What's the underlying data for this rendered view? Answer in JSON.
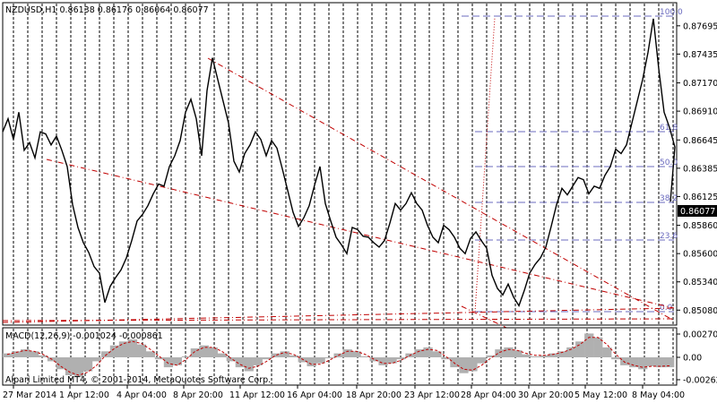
{
  "window": {
    "symbol_header": "NZDUSD,H1  0.86138 0.86176 0.86064 0.86077",
    "copyright": "Alpari Limited MT4, © 2001-2014, MetaQuotes Software Corp."
  },
  "colors": {
    "price_line": "#000000",
    "grid": "#000000",
    "trendline": "#c00000",
    "fibonacci": "#6b6bbf",
    "bid_label_bg": "#000000",
    "macd_histogram": "#b0b0b0",
    "macd_signal": "#c00000"
  },
  "price_axis": {
    "ticks": [
      "0.87695",
      "0.87435",
      "0.87170",
      "0.86910",
      "0.86645",
      "0.86385",
      "0.86125",
      "0.85860",
      "0.85600",
      "0.85340",
      "0.85080"
    ],
    "bid_label": "0.86077"
  },
  "time_axis": {
    "ticks": [
      "27 Mar 2014",
      "1 Apr 12:00",
      "4 Apr 04:00",
      "8 Apr 20:00",
      "11 Apr 12:00",
      "16 Apr 04:00",
      "18 Apr 20:00",
      "23 Apr 12:00",
      "28 Apr 04:00",
      "30 Apr 20:00",
      "5 May 12:00",
      "8 May 04:00"
    ]
  },
  "fibonacci_levels": [
    "100.0",
    "61.8",
    "50.0",
    "38.2",
    "23.6",
    "0.0"
  ],
  "macd": {
    "header": "MACD(12,26,9) -0.001024 -0.000861",
    "ticks": [
      "0.002705",
      "0.00",
      "-0.002624"
    ]
  },
  "chart_data": [
    {
      "type": "line",
      "title": "NZDUSD,H1",
      "series": [
        {
          "name": "NZDUSD",
          "x": [
            0,
            6,
            12,
            18,
            24,
            30,
            36,
            42,
            48,
            54,
            60,
            66,
            72,
            78,
            84,
            90,
            96,
            102,
            108,
            114,
            120,
            126,
            132,
            138,
            144,
            150,
            156,
            162,
            168,
            174,
            180,
            186,
            192,
            198,
            204,
            210,
            216,
            222,
            228,
            234,
            240,
            246,
            252,
            258,
            264,
            270,
            276,
            282,
            288,
            294,
            300,
            306,
            312,
            318,
            324,
            330,
            336,
            342,
            348,
            354,
            360,
            366,
            372,
            378,
            384,
            390,
            396,
            402,
            408,
            414,
            420,
            426,
            432,
            438,
            444,
            450,
            456,
            462,
            468,
            474,
            480,
            486,
            492,
            498,
            504,
            510,
            516,
            522,
            528,
            534,
            540,
            546,
            552,
            558,
            564,
            570,
            576,
            582,
            588,
            594,
            600,
            606,
            612,
            618,
            624,
            630,
            636,
            642,
            648,
            654,
            660,
            666,
            672,
            678,
            684,
            690,
            696,
            702,
            708,
            714,
            720,
            726,
            732,
            738,
            744,
            750
          ],
          "y": [
            0.8672,
            0.8684,
            0.8665,
            0.869,
            0.8655,
            0.8662,
            0.8648,
            0.8672,
            0.867,
            0.866,
            0.8668,
            0.8655,
            0.864,
            0.8605,
            0.8584,
            0.857,
            0.8561,
            0.8548,
            0.8542,
            0.8515,
            0.853,
            0.8538,
            0.8545,
            0.8556,
            0.8572,
            0.859,
            0.8596,
            0.8604,
            0.8615,
            0.8624,
            0.8622,
            0.864,
            0.865,
            0.8664,
            0.869,
            0.8702,
            0.8684,
            0.865,
            0.871,
            0.874,
            0.872,
            0.87,
            0.868,
            0.8645,
            0.8635,
            0.8652,
            0.866,
            0.8672,
            0.8665,
            0.865,
            0.8664,
            0.8657,
            0.8638,
            0.8618,
            0.8598,
            0.8585,
            0.8593,
            0.8604,
            0.8623,
            0.864,
            0.8606,
            0.859,
            0.8575,
            0.8568,
            0.856,
            0.8584,
            0.8582,
            0.8576,
            0.8575,
            0.857,
            0.8566,
            0.8572,
            0.8588,
            0.8606,
            0.86,
            0.8606,
            0.8616,
            0.8606,
            0.86,
            0.8586,
            0.8575,
            0.857,
            0.8586,
            0.8582,
            0.8575,
            0.8565,
            0.856,
            0.8574,
            0.858,
            0.8572,
            0.8565,
            0.854,
            0.8528,
            0.8522,
            0.8532,
            0.852,
            0.8512,
            0.8526,
            0.8542,
            0.855,
            0.8556,
            0.8566,
            0.8585,
            0.8605,
            0.862,
            0.8614,
            0.8622,
            0.863,
            0.8628,
            0.8615,
            0.8622,
            0.862,
            0.8632,
            0.864,
            0.8656,
            0.8652,
            0.866,
            0.868,
            0.87,
            0.872,
            0.8745,
            0.8776,
            0.873,
            0.869,
            0.8676,
            0.8658
          ],
          "last": 0.86077
        }
      ],
      "ylim": [
        0.85,
        0.8785
      ]
    },
    {
      "type": "bar",
      "title": "MACD(12,26,9)",
      "series": [
        {
          "name": "MACD histogram",
          "values": [
            0.0004,
            0.0006,
            0.0008,
            0.0006,
            0.0002,
            -0.0004,
            -0.0012,
            -0.0018,
            -0.002,
            -0.0014,
            -0.0004,
            0.0006,
            0.0012,
            0.0016,
            0.0018,
            0.0013,
            0.0006,
            -0.0002,
            -0.001,
            -0.0008,
            0.0001,
            0.0009,
            0.0012,
            0.001,
            0.0004,
            -0.0004,
            -0.001,
            -0.0014,
            -0.0008,
            -0.0002,
            0.0004,
            0.0006,
            0.0002,
            -0.0005,
            -0.0009,
            -0.0006,
            -0.0001,
            0.0004,
            0.0008,
            0.0006,
            0.0001,
            -0.0004,
            -0.0008,
            -0.0006,
            -0.0002,
            0.0004,
            0.0008,
            0.001,
            0.0006,
            -0.0002,
            -0.001,
            -0.0016,
            -0.0014,
            -0.0006,
            0.0002,
            0.0008,
            0.001,
            0.0007,
            0.0003,
            0.0001,
            0.0002,
            0.0004,
            0.0006,
            0.001,
            0.0016,
            0.0024,
            0.002,
            0.001,
            -0.0002,
            -0.0008,
            -0.001,
            -0.0012,
            -0.0009,
            -0.001,
            -0.001
          ]
        },
        {
          "name": "Signal",
          "values": [
            0.0003,
            0.0005,
            0.0007,
            0.0006,
            0.0003,
            -0.0002,
            -0.0009,
            -0.0015,
            -0.0018,
            -0.0015,
            -0.0008,
            0.0002,
            0.0009,
            0.0014,
            0.0016,
            0.0014,
            0.0008,
            0.0001,
            -0.0006,
            -0.0008,
            -0.0002,
            0.0006,
            0.001,
            0.001,
            0.0006,
            -0.0001,
            -0.0007,
            -0.0011,
            -0.0009,
            -0.0004,
            0.0002,
            0.0005,
            0.0003,
            -0.0002,
            -0.0007,
            -0.0007,
            -0.0003,
            0.0002,
            0.0006,
            0.0006,
            0.0003,
            -0.0002,
            -0.0006,
            -0.0006,
            -0.0003,
            0.0002,
            0.0006,
            0.0008,
            0.0007,
            0.0001,
            -0.0006,
            -0.0012,
            -0.0013,
            -0.0008,
            -0.0001,
            0.0005,
            0.0008,
            0.0007,
            0.0004,
            0.0002,
            0.0002,
            0.0003,
            0.0005,
            0.0008,
            0.0013,
            0.002,
            0.002,
            0.0013,
            0.0003,
            -0.0005,
            -0.0008,
            -0.001,
            -0.0009,
            -0.0009,
            -0.00086
          ]
        }
      ],
      "ylim": [
        -0.002624,
        0.002705
      ]
    }
  ]
}
